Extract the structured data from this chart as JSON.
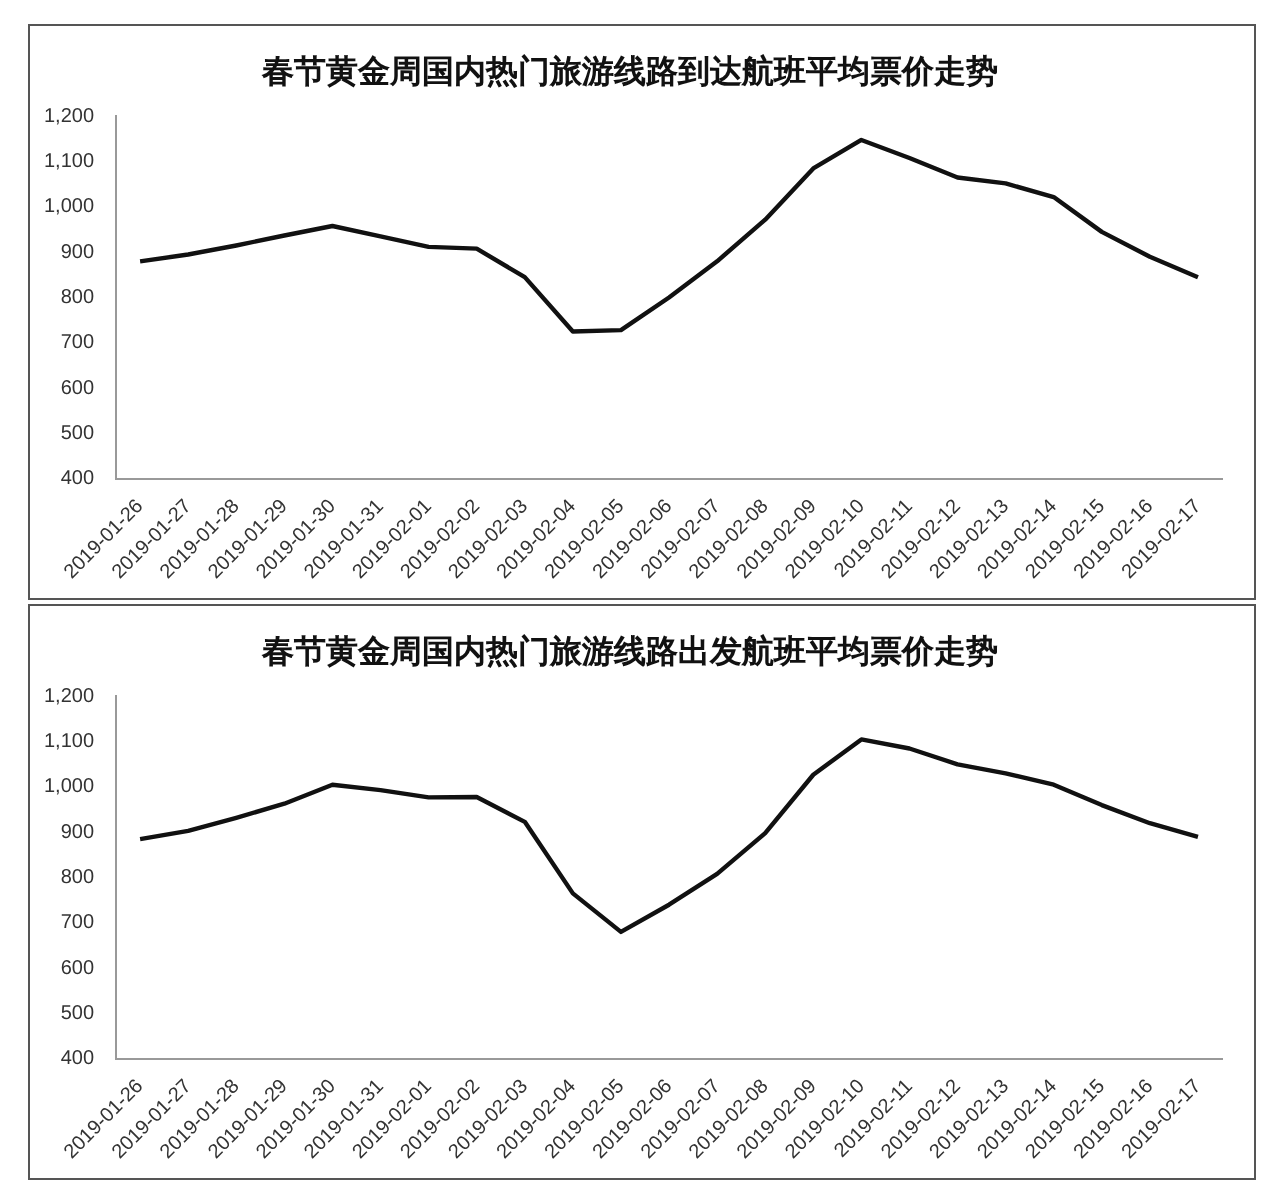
{
  "chart_data": [
    {
      "type": "line",
      "title": "春节黄金周国内热门旅游线路到达航班平均票价走势",
      "categories": [
        "2019-01-26",
        "2019-01-27",
        "2019-01-28",
        "2019-01-29",
        "2019-01-30",
        "2019-01-31",
        "2019-02-01",
        "2019-02-02",
        "2019-02-03",
        "2019-02-04",
        "2019-02-05",
        "2019-02-06",
        "2019-02-07",
        "2019-02-08",
        "2019-02-09",
        "2019-02-10",
        "2019-02-11",
        "2019-02-12",
        "2019-02-13",
        "2019-02-14",
        "2019-02-15",
        "2019-02-16",
        "2019-02-17"
      ],
      "series": [
        {
          "color": "#111111",
          "values": [
            880,
            895,
            915,
            937,
            958,
            935,
            912,
            908,
            845,
            725,
            728,
            800,
            880,
            972,
            1085,
            1148,
            1108,
            1065,
            1052,
            1022,
            945,
            890,
            845
          ]
        }
      ],
      "ylim": [
        400,
        1200
      ],
      "yticks": [
        400,
        500,
        600,
        700,
        800,
        900,
        {
          "value": 1000,
          "label": "1,000"
        },
        {
          "value": 1100,
          "label": "1,100"
        },
        {
          "value": 1200,
          "label": "1,200"
        }
      ],
      "grid": false,
      "legend": false,
      "marker": "none",
      "line_style": "solid"
    },
    {
      "type": "line",
      "title": "春节黄金周国内热门旅游线路出发航班平均票价走势",
      "categories": [
        "2019-01-26",
        "2019-01-27",
        "2019-01-28",
        "2019-01-29",
        "2019-01-30",
        "2019-01-31",
        "2019-02-01",
        "2019-02-02",
        "2019-02-03",
        "2019-02-04",
        "2019-02-05",
        "2019-02-06",
        "2019-02-07",
        "2019-02-08",
        "2019-02-09",
        "2019-02-10",
        "2019-02-11",
        "2019-02-12",
        "2019-02-13",
        "2019-02-14",
        "2019-02-15",
        "2019-02-16",
        "2019-02-17"
      ],
      "series": [
        {
          "color": "#111111",
          "values": [
            885,
            903,
            932,
            963,
            1005,
            993,
            977,
            978,
            923,
            765,
            680,
            740,
            808,
            898,
            1027,
            1105,
            1085,
            1050,
            1030,
            1005,
            960,
            920,
            890
          ]
        }
      ],
      "ylim": [
        400,
        1200
      ],
      "yticks": [
        400,
        500,
        600,
        700,
        800,
        900,
        {
          "value": 1000,
          "label": "1,000"
        },
        {
          "value": 1100,
          "label": "1,100"
        },
        {
          "value": 1200,
          "label": "1,200"
        }
      ],
      "grid": false,
      "legend": false,
      "marker": "none",
      "line_style": "solid"
    }
  ]
}
